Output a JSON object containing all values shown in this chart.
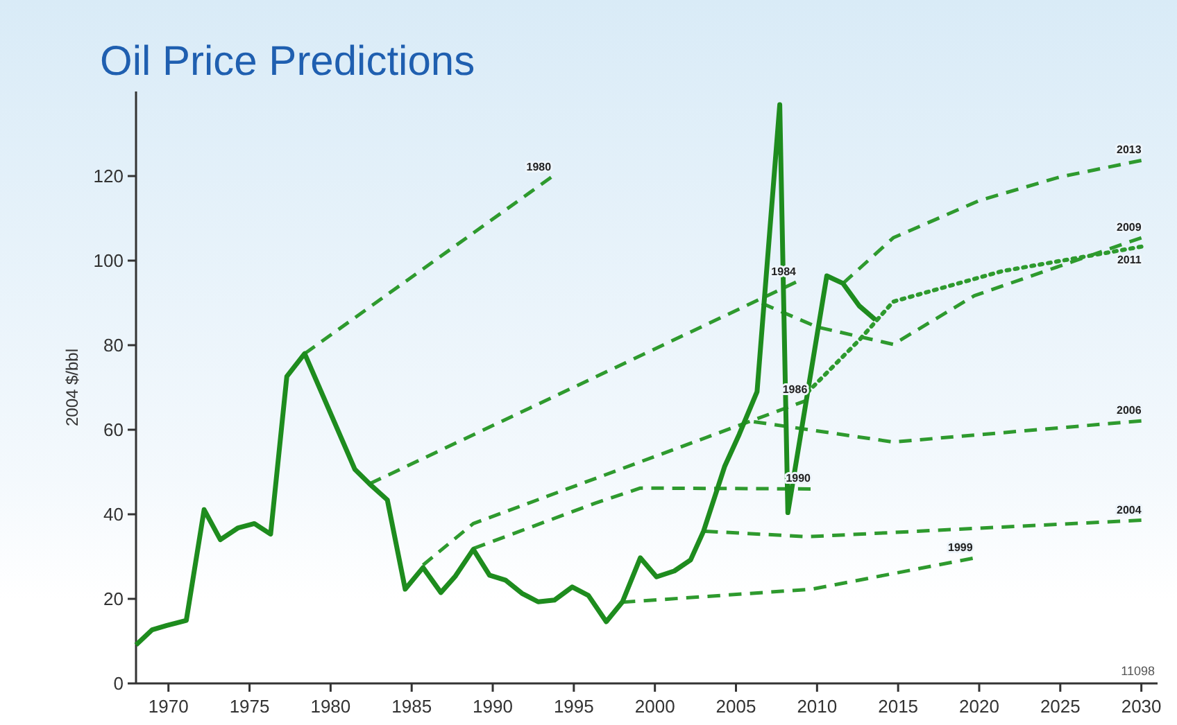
{
  "chart_data": {
    "type": "line",
    "title": "Oil Price Predictions",
    "ylabel": "2004 $/bbl",
    "xlim": [
      1968,
      2031
    ],
    "xticks": [
      1970,
      1975,
      1980,
      1985,
      1990,
      1995,
      2000,
      2005,
      2010,
      2015,
      2020,
      2025,
      2030
    ],
    "ylim": [
      0,
      140
    ],
    "yticks": [
      0,
      20,
      40,
      60,
      80,
      100,
      120
    ],
    "grid": false,
    "legend": false,
    "marker": "none",
    "annotations": [
      "11098"
    ],
    "series": [
      {
        "color": "#1e8c1e",
        "line_style": "solid",
        "x": [
          1968,
          1969,
          1969.9,
          1971.1,
          1972.2,
          1973.2,
          1974.3,
          1975.3,
          1976.3,
          1977.3,
          1978.4,
          1981.5,
          1982.4,
          1983.5,
          1984.6,
          1985.7,
          1986.8,
          1987.7,
          1988.8,
          1989.8,
          1990.8,
          1991.8,
          1992.8,
          1993.8,
          1994.9,
          1995.9,
          1997,
          1998,
          1999.1,
          2000.1,
          2001.2,
          2002.2,
          2003,
          2004.3,
          2005.2,
          2006.3,
          2007.7,
          2008.2,
          2010.6,
          2011.6,
          2012.6,
          2013.6
        ],
        "values": [
          9.1,
          12.7,
          13.7,
          14.9,
          41.1,
          34,
          36.8,
          37.8,
          35.3,
          72.6,
          78,
          50.6,
          47.2,
          43.4,
          22.3,
          27.4,
          21.5,
          25.4,
          31.7,
          25.6,
          24.4,
          21.3,
          19.3,
          19.7,
          22.8,
          20.8,
          14.6,
          19.3,
          29.7,
          25.2,
          26.6,
          29.2,
          36,
          51.3,
          58.9,
          69,
          136.9,
          40.4,
          96.4,
          94.6,
          89.3,
          86
        ]
      },
      {
        "name": "1980",
        "color": "#2e9a2e",
        "line_style": "dashed",
        "x": [
          1978.4,
          1993.6
        ],
        "values": [
          78,
          119.7
        ]
      },
      {
        "name": "1984",
        "color": "#2e9a2e",
        "line_style": "dashed",
        "x": [
          1982.4,
          2008.7
        ],
        "values": [
          47.2,
          94.9
        ]
      },
      {
        "name": "1986",
        "color": "#2e9a2e",
        "line_style": "dashed",
        "x": [
          1985.7,
          1988.8,
          2009.4
        ],
        "values": [
          28,
          37.8,
          67
        ]
      },
      {
        "name": "1990",
        "color": "#2e9a2e",
        "line_style": "dashed",
        "x": [
          1988.8,
          1996.3,
          1999.1,
          2009.6
        ],
        "values": [
          31.9,
          42.6,
          46.2,
          46
        ]
      },
      {
        "name": "1999",
        "color": "#2e9a2e",
        "line_style": "dashed",
        "x": [
          1998,
          2009.7,
          2019.6
        ],
        "values": [
          19.2,
          22.3,
          29.6
        ]
      },
      {
        "name": "2004",
        "color": "#2e9a2e",
        "line_style": "dashed",
        "x": [
          2003.1,
          2009.4,
          2030
        ],
        "values": [
          36,
          34.7,
          38.6
        ]
      },
      {
        "name": "2006",
        "color": "#2e9a2e",
        "line_style": "dashed",
        "x": [
          2006.1,
          2014.7,
          2030
        ],
        "values": [
          61.9,
          57.1,
          62.1
        ]
      },
      {
        "name": "2009",
        "color": "#2e9a2e",
        "line_style": "dashed",
        "x": [
          2006.6,
          2010,
          2014.7,
          2019.7,
          2030
        ],
        "values": [
          89.9,
          84.3,
          80.2,
          91.7,
          105.4
        ]
      },
      {
        "name": "2011",
        "color": "#2e9a2e",
        "line_style": "dotted",
        "x": [
          2009.4,
          2012.6,
          2014.7,
          2021.4,
          2030
        ],
        "values": [
          68.8,
          81.2,
          90.3,
          97.5,
          103.3
        ]
      },
      {
        "name": "2013",
        "color": "#2e9a2e",
        "line_style": "dashed",
        "x": [
          2011.6,
          2014.7,
          2020,
          2025,
          2030
        ],
        "values": [
          94.6,
          105.4,
          114.2,
          119.8,
          123.7
        ]
      }
    ]
  }
}
